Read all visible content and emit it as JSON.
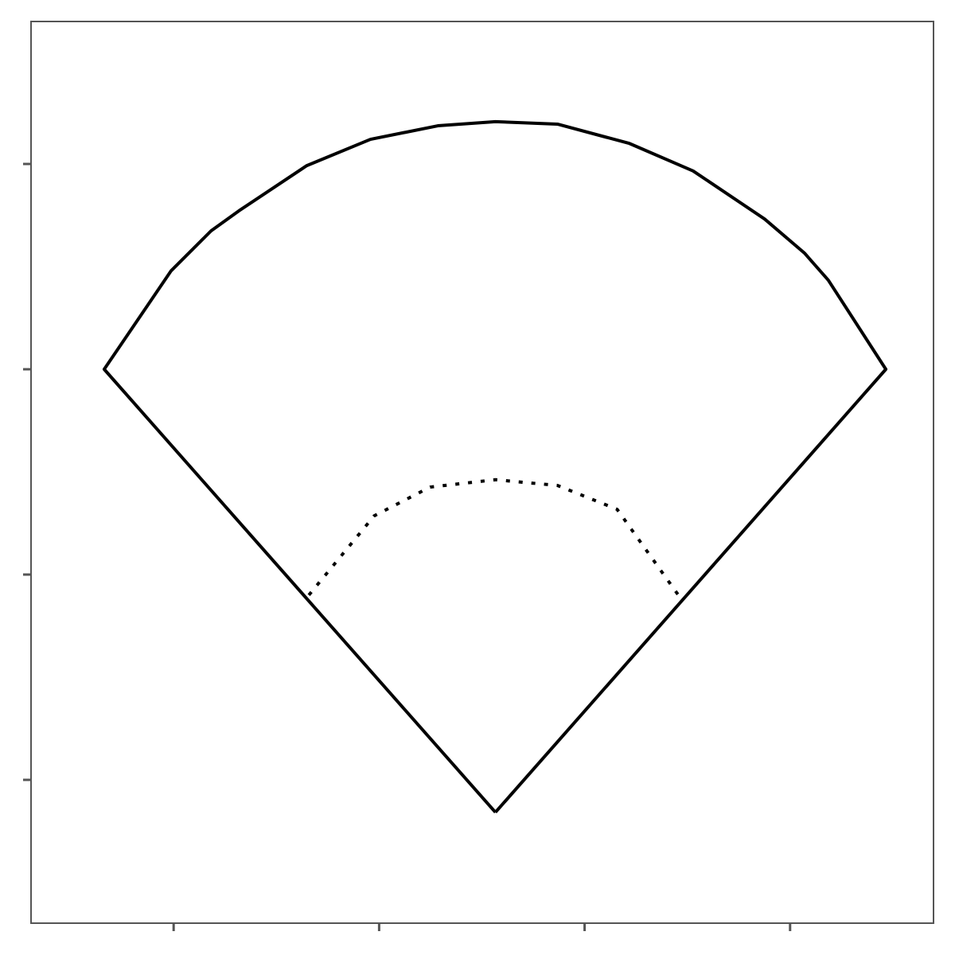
{
  "chart_data": {
    "type": "line",
    "xlim": [
      15.3,
      234.9
    ],
    "ylim": [
      -234.9,
      -15.3
    ],
    "xticks": [
      50,
      100,
      150,
      200
    ],
    "yticks": [
      -200,
      -150,
      -100,
      -50
    ],
    "grid": false,
    "series": [
      {
        "color": "#000000",
        "dash": "solid",
        "x": [
          128.3,
          33.1,
          49.4,
          59.1,
          65.9,
          82.4,
          97.9,
          114.3,
          128.3,
          143.4,
          160.9,
          176.4,
          193.8,
          203.5,
          209.3,
          223.3,
          128.3
        ],
        "values": [
          -207.9,
          -100,
          -76,
          -66.3,
          -61.4,
          -50.4,
          -44,
          -40.7,
          -39.7,
          -40.3,
          -45,
          -51.7,
          -63.4,
          -71.7,
          -78.3,
          -100,
          -207.9
        ]
      },
      {
        "color": "#000000",
        "dash": "dotted",
        "x": [
          82.9,
          98.8,
          112.4,
          128.3,
          143.4,
          157.9,
          173.1
        ],
        "values": [
          -155,
          -135.7,
          -128.7,
          -126.9,
          -128.3,
          -134.1,
          -155.4
        ]
      }
    ]
  }
}
